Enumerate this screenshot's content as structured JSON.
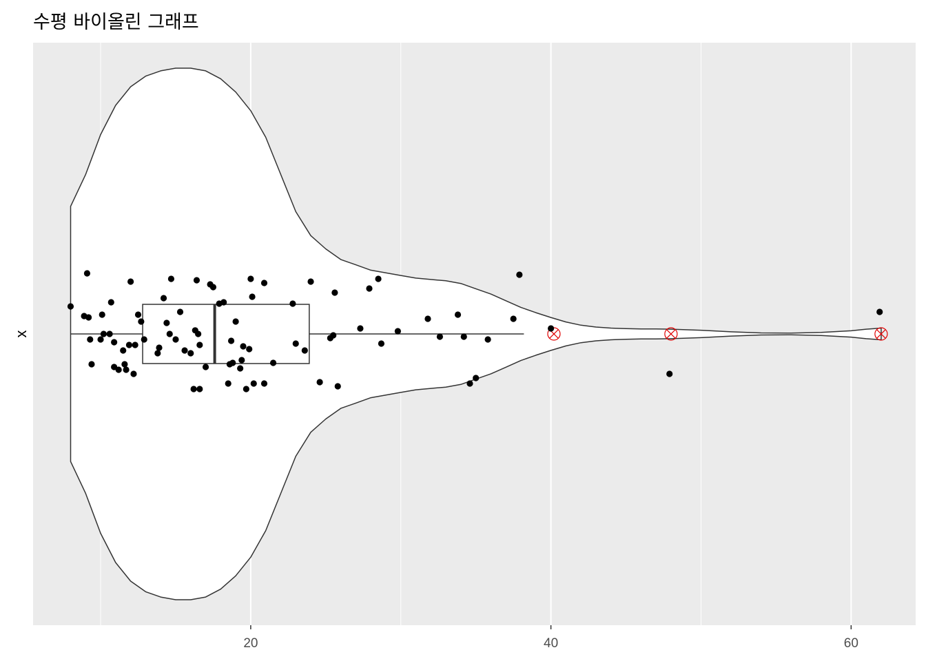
{
  "chart_data": {
    "type": "violin",
    "orientation": "horizontal",
    "title": "수평 바이올린 그래프",
    "xlabel": "",
    "ylabel": "x",
    "xlim": [
      5.5,
      64.3
    ],
    "x_ticks": [
      20,
      40,
      60
    ],
    "x_tick_labels": [
      "20",
      "40",
      "60"
    ],
    "minor_gridlines": [
      10,
      30,
      50
    ],
    "grid": true,
    "background": "#ebebeb",
    "box": {
      "min": 8,
      "q1": 12.8,
      "median": 17.6,
      "q3": 23.9,
      "whisker_max": 38.2
    },
    "outliers": [
      40.2,
      48,
      62
    ],
    "outlier_color": "#e00000",
    "violin_outline_color": "#333333",
    "violin_fill": "#ffffff",
    "violin_density": [
      [
        8,
        0.48
      ],
      [
        9,
        0.6
      ],
      [
        10,
        0.75
      ],
      [
        11,
        0.86
      ],
      [
        12,
        0.93
      ],
      [
        13,
        0.97
      ],
      [
        14,
        0.99
      ],
      [
        15,
        1.0
      ],
      [
        16,
        1.0
      ],
      [
        17,
        0.99
      ],
      [
        18,
        0.96
      ],
      [
        19,
        0.91
      ],
      [
        20,
        0.84
      ],
      [
        21,
        0.74
      ],
      [
        22,
        0.6
      ],
      [
        23,
        0.46
      ],
      [
        24,
        0.37
      ],
      [
        25,
        0.32
      ],
      [
        26,
        0.28
      ],
      [
        27,
        0.26
      ],
      [
        28,
        0.24
      ],
      [
        29,
        0.23
      ],
      [
        30,
        0.22
      ],
      [
        31,
        0.21
      ],
      [
        32,
        0.205
      ],
      [
        33,
        0.2
      ],
      [
        34,
        0.19
      ],
      [
        35,
        0.17
      ],
      [
        36,
        0.15
      ],
      [
        37,
        0.125
      ],
      [
        38,
        0.1
      ],
      [
        39,
        0.08
      ],
      [
        40,
        0.062
      ],
      [
        41,
        0.045
      ],
      [
        42,
        0.033
      ],
      [
        43,
        0.026
      ],
      [
        44,
        0.022
      ],
      [
        45,
        0.02
      ],
      [
        46,
        0.019
      ],
      [
        47,
        0.019
      ],
      [
        48,
        0.018
      ],
      [
        50,
        0.014
      ],
      [
        52,
        0.008
      ],
      [
        54,
        0.004
      ],
      [
        56,
        0.003
      ],
      [
        58,
        0.006
      ],
      [
        60,
        0.012
      ],
      [
        61,
        0.018
      ],
      [
        62,
        0.022
      ]
    ],
    "jitter_points": [
      {
        "x": 8.0,
        "offset": 0.1
      },
      {
        "x": 8.9,
        "offset": 0.065
      },
      {
        "x": 9.2,
        "offset": 0.06
      },
      {
        "x": 9.1,
        "offset": 0.22
      },
      {
        "x": 9.3,
        "offset": -0.02
      },
      {
        "x": 9.4,
        "offset": -0.11
      },
      {
        "x": 10.0,
        "offset": -0.02
      },
      {
        "x": 10.1,
        "offset": 0.07
      },
      {
        "x": 10.2,
        "offset": 0.0
      },
      {
        "x": 10.7,
        "offset": 0.115
      },
      {
        "x": 10.6,
        "offset": 0.0
      },
      {
        "x": 10.9,
        "offset": -0.03
      },
      {
        "x": 10.9,
        "offset": -0.12
      },
      {
        "x": 11.2,
        "offset": -0.13
      },
      {
        "x": 11.5,
        "offset": -0.06
      },
      {
        "x": 11.6,
        "offset": -0.11
      },
      {
        "x": 11.7,
        "offset": -0.13
      },
      {
        "x": 11.9,
        "offset": -0.04
      },
      {
        "x": 12.0,
        "offset": 0.19
      },
      {
        "x": 12.2,
        "offset": -0.145
      },
      {
        "x": 12.3,
        "offset": -0.04
      },
      {
        "x": 12.5,
        "offset": 0.07
      },
      {
        "x": 12.7,
        "offset": 0.045
      },
      {
        "x": 12.9,
        "offset": -0.02
      },
      {
        "x": 13.8,
        "offset": -0.07
      },
      {
        "x": 13.9,
        "offset": -0.05
      },
      {
        "x": 14.2,
        "offset": 0.13
      },
      {
        "x": 14.4,
        "offset": 0.04
      },
      {
        "x": 14.6,
        "offset": 0.0
      },
      {
        "x": 14.7,
        "offset": 0.2
      },
      {
        "x": 15.0,
        "offset": -0.02
      },
      {
        "x": 15.3,
        "offset": 0.08
      },
      {
        "x": 15.6,
        "offset": -0.06
      },
      {
        "x": 16.0,
        "offset": -0.07
      },
      {
        "x": 16.2,
        "offset": -0.2
      },
      {
        "x": 16.3,
        "offset": 0.013
      },
      {
        "x": 16.4,
        "offset": 0.195
      },
      {
        "x": 16.5,
        "offset": 0.0
      },
      {
        "x": 16.6,
        "offset": -0.04
      },
      {
        "x": 16.6,
        "offset": -0.2
      },
      {
        "x": 17.0,
        "offset": -0.12
      },
      {
        "x": 17.3,
        "offset": 0.18
      },
      {
        "x": 17.5,
        "offset": 0.17
      },
      {
        "x": 17.9,
        "offset": 0.11
      },
      {
        "x": 18.2,
        "offset": 0.115
      },
      {
        "x": 18.5,
        "offset": -0.18
      },
      {
        "x": 18.6,
        "offset": -0.11
      },
      {
        "x": 18.7,
        "offset": -0.025
      },
      {
        "x": 18.8,
        "offset": -0.105
      },
      {
        "x": 19.0,
        "offset": 0.045
      },
      {
        "x": 19.3,
        "offset": -0.125
      },
      {
        "x": 19.4,
        "offset": -0.095
      },
      {
        "x": 19.5,
        "offset": -0.045
      },
      {
        "x": 19.7,
        "offset": -0.2
      },
      {
        "x": 19.9,
        "offset": -0.055
      },
      {
        "x": 20.0,
        "offset": 0.2
      },
      {
        "x": 20.1,
        "offset": 0.135
      },
      {
        "x": 20.2,
        "offset": -0.18
      },
      {
        "x": 20.9,
        "offset": 0.185
      },
      {
        "x": 20.9,
        "offset": -0.18
      },
      {
        "x": 21.5,
        "offset": -0.105
      },
      {
        "x": 22.8,
        "offset": 0.11
      },
      {
        "x": 23.0,
        "offset": -0.035
      },
      {
        "x": 23.6,
        "offset": -0.06
      },
      {
        "x": 24.0,
        "offset": 0.19
      },
      {
        "x": 24.6,
        "offset": -0.175
      },
      {
        "x": 25.3,
        "offset": -0.015
      },
      {
        "x": 25.5,
        "offset": -0.005
      },
      {
        "x": 25.6,
        "offset": 0.15
      },
      {
        "x": 25.8,
        "offset": -0.19
      },
      {
        "x": 27.3,
        "offset": 0.02
      },
      {
        "x": 27.9,
        "offset": 0.165
      },
      {
        "x": 28.5,
        "offset": 0.2
      },
      {
        "x": 28.7,
        "offset": -0.035
      },
      {
        "x": 29.8,
        "offset": 0.01
      },
      {
        "x": 31.8,
        "offset": 0.055
      },
      {
        "x": 32.6,
        "offset": -0.01
      },
      {
        "x": 33.8,
        "offset": 0.07
      },
      {
        "x": 34.2,
        "offset": -0.01
      },
      {
        "x": 34.6,
        "offset": -0.18
      },
      {
        "x": 35.0,
        "offset": -0.16
      },
      {
        "x": 35.8,
        "offset": -0.02
      },
      {
        "x": 37.5,
        "offset": 0.055
      },
      {
        "x": 37.9,
        "offset": 0.215
      },
      {
        "x": 40.0,
        "offset": 0.02
      },
      {
        "x": 47.9,
        "offset": -0.145
      },
      {
        "x": 61.9,
        "offset": 0.08
      }
    ]
  }
}
